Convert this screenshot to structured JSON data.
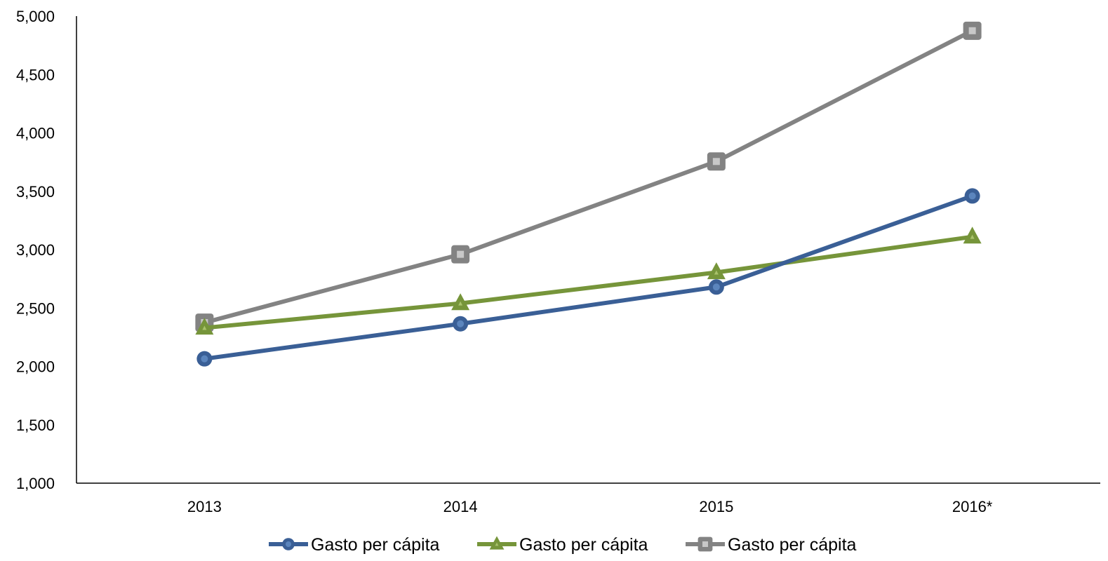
{
  "chart_data": {
    "type": "line",
    "categories": [
      "2013",
      "2014",
      "2015",
      "2016*"
    ],
    "ylim": [
      1000,
      5000
    ],
    "yticks": [
      1000,
      1500,
      2000,
      2500,
      3000,
      3500,
      4000,
      4500,
      5000
    ],
    "ytick_labels": [
      "1,000",
      "1,500",
      "2,000",
      "2,500",
      "3,000",
      "3,500",
      "4,000",
      "4,500",
      "5,000"
    ],
    "grid": false,
    "legend_position": "bottom",
    "series": [
      {
        "name": "Gasto per cápita",
        "values": [
          2065,
          2365,
          2680,
          3460
        ],
        "color": "#3a5f96",
        "marker": "circle"
      },
      {
        "name": "Gasto per cápita",
        "values": [
          2330,
          2540,
          2805,
          3110
        ],
        "color": "#76953a",
        "marker": "triangle"
      },
      {
        "name": "Gasto per cápita",
        "values": [
          2375,
          2960,
          3755,
          4875
        ],
        "color": "#838383",
        "marker": "square"
      }
    ]
  }
}
